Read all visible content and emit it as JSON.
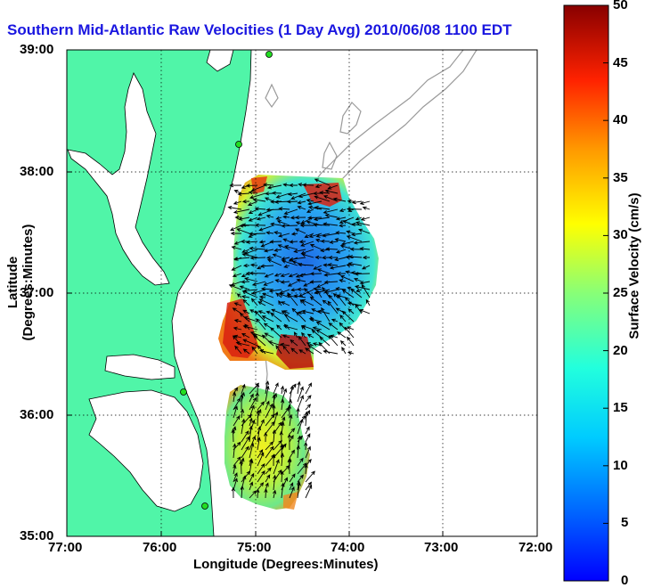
{
  "title": "Southern Mid-Atlantic Raw Velocities (1 Day Avg) 2010/06/08 1100 EDT",
  "x_axis": {
    "label": "Longitude (Degrees:Minutes)",
    "ticks": [
      "77:00",
      "76:00",
      "75:00",
      "74:00",
      "73:00",
      "72:00"
    ]
  },
  "y_axis": {
    "label": "Latitude (Degrees:Minutes)",
    "ticks": [
      "39:00",
      "38:00",
      "37:00",
      "36:00",
      "35:00"
    ]
  },
  "colorbar": {
    "label": "Surface Velocity (cm/s)",
    "ticks": [
      "50",
      "45",
      "40",
      "35",
      "30",
      "25",
      "20",
      "15",
      "10",
      "5",
      "0"
    ],
    "min": 0,
    "max": 50
  },
  "colors": {
    "land": "#50f5a8",
    "title": "#1a16e0",
    "bathymetry": "#9a9a9a"
  }
}
